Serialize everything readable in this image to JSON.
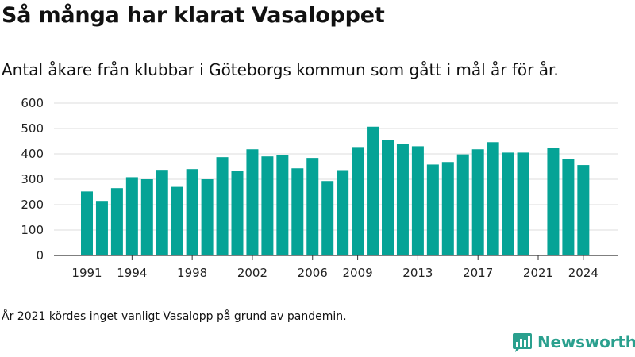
{
  "header": {
    "title": "Så många har klarat Vasaloppet",
    "subtitle": "Antal åkare från klubbar i Göteborgs kommun som gått i mål år för år."
  },
  "footer": {
    "note": "År 2021 kördes inget vanligt Vasalopp på grund av pandemin.",
    "brand": "Newsworthy",
    "brand_icon": "newsworthy-logo-icon"
  },
  "colors": {
    "bar": "#05a396",
    "grid": "#dddddd",
    "axis": "#333333",
    "brand": "#2aa08e"
  },
  "chart_data": {
    "type": "bar",
    "x": [
      1991,
      1992,
      1993,
      1994,
      1995,
      1996,
      1997,
      1998,
      1999,
      2000,
      2001,
      2002,
      2003,
      2004,
      2005,
      2006,
      2007,
      2008,
      2009,
      2010,
      2011,
      2012,
      2013,
      2014,
      2015,
      2016,
      2017,
      2018,
      2019,
      2020,
      2021,
      2022,
      2023,
      2024
    ],
    "values": [
      252,
      215,
      265,
      308,
      300,
      337,
      270,
      340,
      300,
      387,
      333,
      418,
      390,
      395,
      343,
      384,
      293,
      336,
      427,
      507,
      455,
      440,
      430,
      358,
      368,
      398,
      418,
      446,
      405,
      405,
      0,
      425,
      380,
      356
    ],
    "xticks": [
      "1991",
      "1994",
      "1998",
      "2002",
      "2006",
      "2009",
      "2013",
      "2017",
      "2021",
      "2024"
    ],
    "yticks": [
      "0",
      "100",
      "200",
      "300",
      "400",
      "500",
      "600"
    ],
    "ylim": [
      0,
      600
    ],
    "grid": true,
    "legend": "none"
  }
}
